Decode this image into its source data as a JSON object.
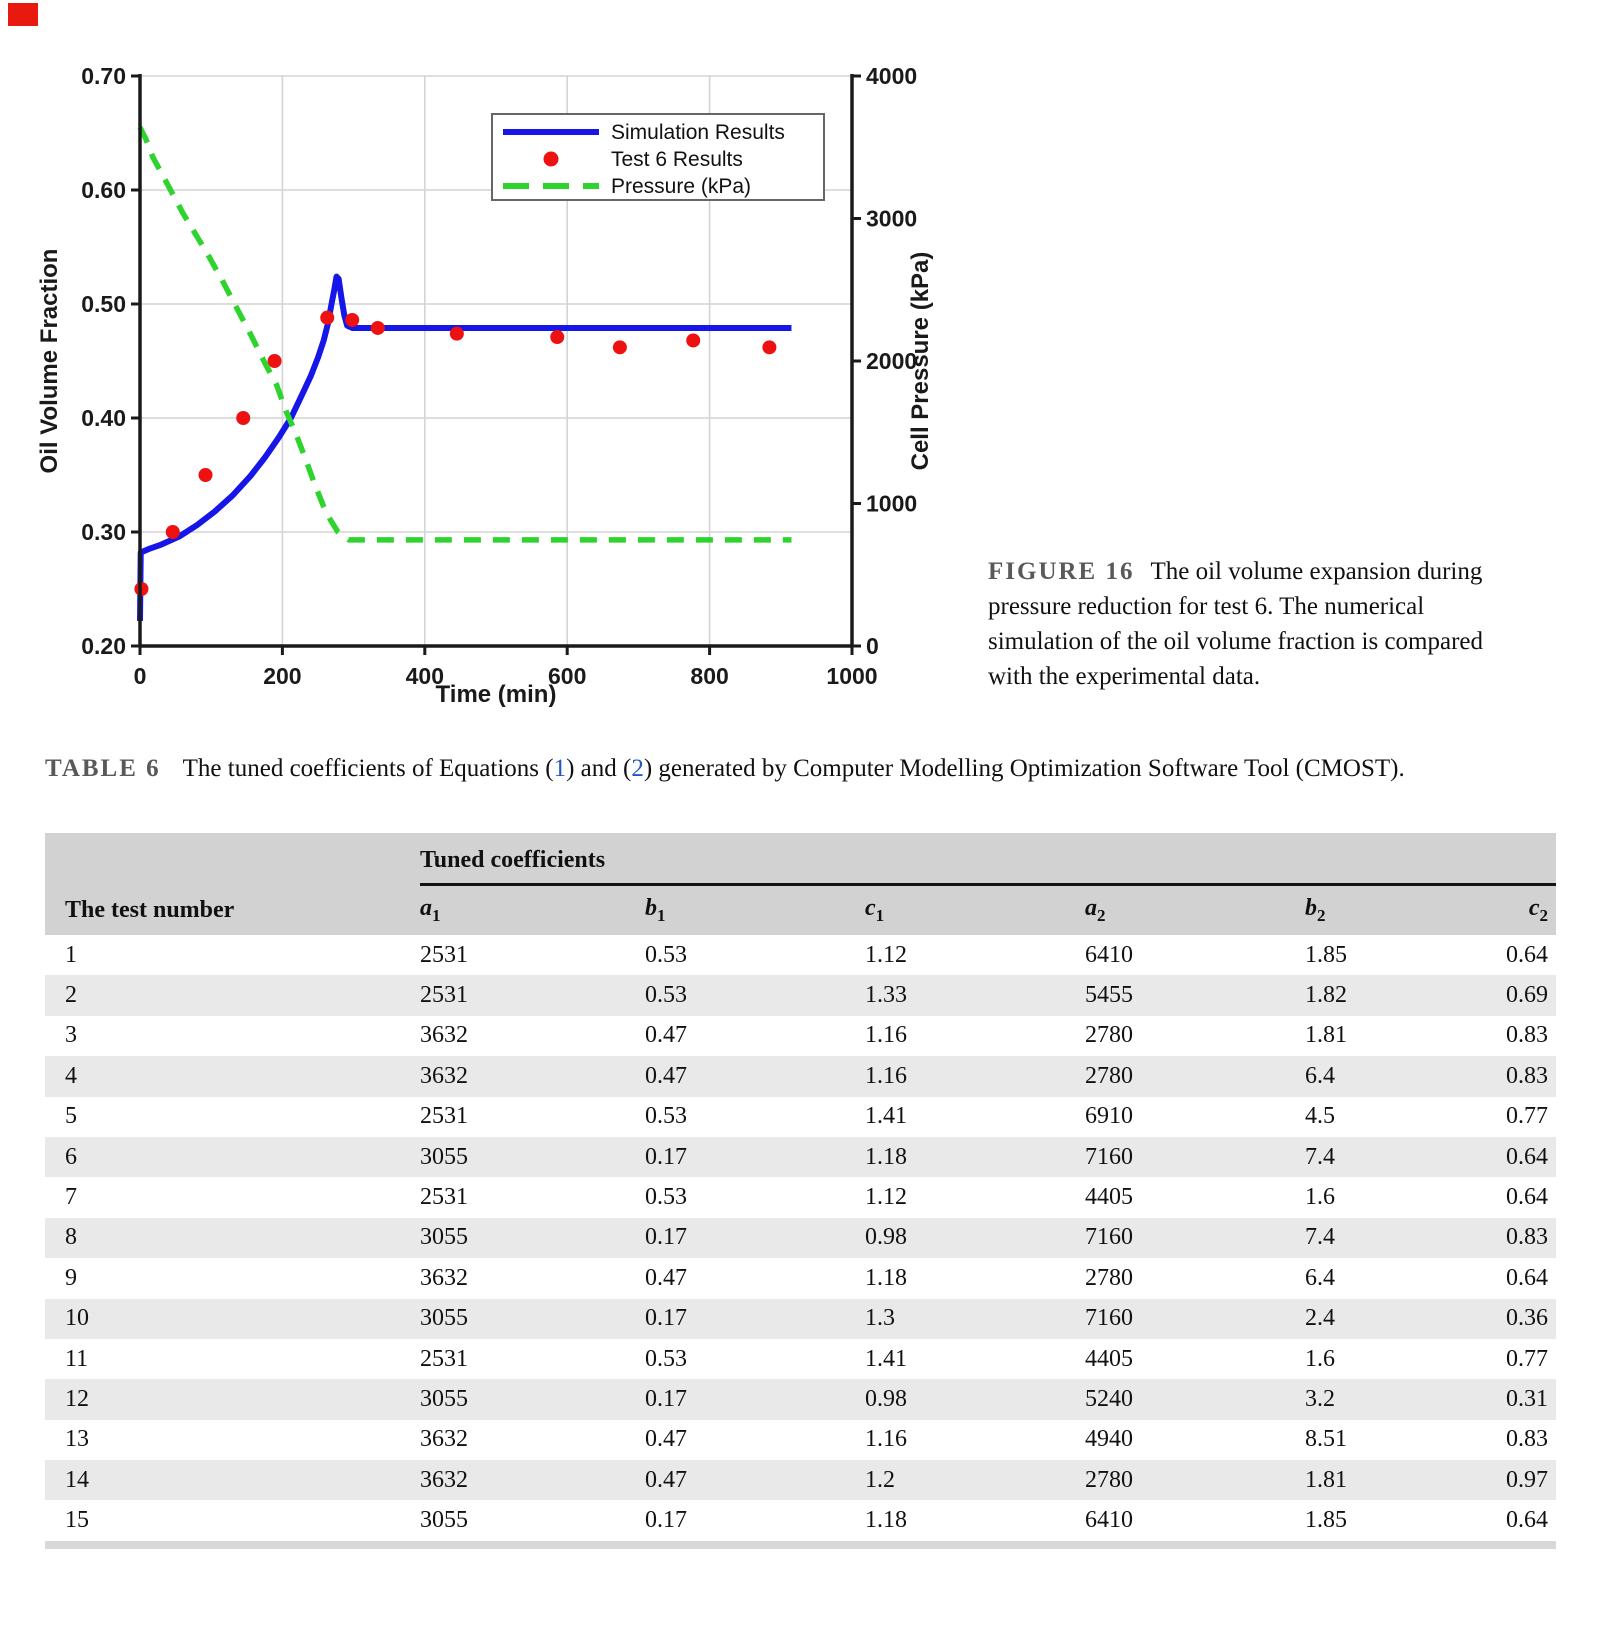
{
  "page": {
    "corner_marker_color": "#e8190f"
  },
  "figure": {
    "caption_label": "FIGURE 16",
    "caption_text": "The oil volume expansion during pressure reduction for test 6. The numerical simulation of the oil volume fraction is compared with the experimental data."
  },
  "chart_data": {
    "type": "line",
    "title": "",
    "xlabel": "Time (min)",
    "ylabel_left": "Oil Volume Fraction",
    "ylabel_right": "Cell Pressure (kPa)",
    "xlim": [
      0,
      1000
    ],
    "ylim_left": [
      0.2,
      0.7
    ],
    "ylim_right": [
      0,
      4000
    ],
    "x_ticks": [
      "0",
      "200",
      "400",
      "600",
      "800",
      "1000"
    ],
    "y_ticks_left": [
      "0.70",
      "0.60",
      "0.50",
      "0.40",
      "0.30",
      "0.20"
    ],
    "y_ticks_right": [
      "4000",
      "3000",
      "2000",
      "1000",
      "0"
    ],
    "grid": true,
    "legend_position": "top-center-inside",
    "legend": [
      {
        "label": "Simulation Results",
        "style": "line",
        "color": "#1616e8"
      },
      {
        "label": "Test 6 Results",
        "style": "dot",
        "color": "#ee1111"
      },
      {
        "label": "Pressure (kPa)",
        "style": "dash",
        "color": "#2ed32e"
      }
    ],
    "series": [
      {
        "name": "Simulation Results",
        "axis": "left",
        "style": "line",
        "color": "#1616e8",
        "points": [
          [
            0,
            0.222
          ],
          [
            1,
            0.282
          ],
          [
            12,
            0.285
          ],
          [
            30,
            0.289
          ],
          [
            55,
            0.296
          ],
          [
            80,
            0.306
          ],
          [
            105,
            0.318
          ],
          [
            130,
            0.332
          ],
          [
            155,
            0.349
          ],
          [
            175,
            0.365
          ],
          [
            195,
            0.383
          ],
          [
            212,
            0.4
          ],
          [
            228,
            0.421
          ],
          [
            240,
            0.437
          ],
          [
            250,
            0.453
          ],
          [
            258,
            0.468
          ],
          [
            264,
            0.483
          ],
          [
            269,
            0.5
          ],
          [
            273,
            0.513
          ],
          [
            276,
            0.524
          ],
          [
            279,
            0.522
          ],
          [
            283,
            0.505
          ],
          [
            287,
            0.49
          ],
          [
            291,
            0.481
          ],
          [
            298,
            0.479
          ],
          [
            915,
            0.479
          ]
        ]
      },
      {
        "name": "Test 6 Results",
        "axis": "left",
        "style": "dot",
        "color": "#ee1111",
        "points": [
          [
            2,
            0.25
          ],
          [
            46,
            0.3
          ],
          [
            92,
            0.35
          ],
          [
            145,
            0.4
          ],
          [
            189,
            0.45
          ],
          [
            263,
            0.488
          ],
          [
            298,
            0.486
          ],
          [
            334,
            0.479
          ],
          [
            445,
            0.474
          ],
          [
            586,
            0.471
          ],
          [
            674,
            0.462
          ],
          [
            777,
            0.468
          ],
          [
            884,
            0.462
          ]
        ]
      },
      {
        "name": "Pressure (kPa)",
        "axis": "right",
        "style": "dash",
        "color": "#2ed32e",
        "points": [
          [
            0,
            3640
          ],
          [
            8,
            3560
          ],
          [
            18,
            3430
          ],
          [
            30,
            3320
          ],
          [
            45,
            3180
          ],
          [
            60,
            3040
          ],
          [
            78,
            2890
          ],
          [
            95,
            2750
          ],
          [
            115,
            2570
          ],
          [
            135,
            2380
          ],
          [
            155,
            2190
          ],
          [
            175,
            1990
          ],
          [
            192,
            1830
          ],
          [
            205,
            1650
          ],
          [
            218,
            1500
          ],
          [
            232,
            1320
          ],
          [
            245,
            1140
          ],
          [
            257,
            990
          ],
          [
            268,
            880
          ],
          [
            278,
            800
          ],
          [
            293,
            745
          ],
          [
            915,
            745
          ]
        ]
      }
    ]
  },
  "table": {
    "caption_label": "TABLE 6",
    "caption_segments": [
      {
        "text": "The tuned coefficients of Equations (",
        "link": false
      },
      {
        "text": "1",
        "link": true
      },
      {
        "text": ") and (",
        "link": false
      },
      {
        "text": "2",
        "link": true
      },
      {
        "text": ") generated by Computer Modelling Optimization Software Tool (CMOST).",
        "link": false
      }
    ],
    "group_header": "Tuned coefficients",
    "col1_header": "The test number",
    "coeff_headers": [
      {
        "base": "a",
        "sub": "1"
      },
      {
        "base": "b",
        "sub": "1"
      },
      {
        "base": "c",
        "sub": "1"
      },
      {
        "base": "a",
        "sub": "2"
      },
      {
        "base": "b",
        "sub": "2"
      },
      {
        "base": "c",
        "sub": "2"
      }
    ],
    "rows": [
      [
        "1",
        "2531",
        "0.53",
        "1.12",
        "6410",
        "1.85",
        "0.64"
      ],
      [
        "2",
        "2531",
        "0.53",
        "1.33",
        "5455",
        "1.82",
        "0.69"
      ],
      [
        "3",
        "3632",
        "0.47",
        "1.16",
        "2780",
        "1.81",
        "0.83"
      ],
      [
        "4",
        "3632",
        "0.47",
        "1.16",
        "2780",
        "6.4",
        "0.83"
      ],
      [
        "5",
        "2531",
        "0.53",
        "1.41",
        "6910",
        "4.5",
        "0.77"
      ],
      [
        "6",
        "3055",
        "0.17",
        "1.18",
        "7160",
        "7.4",
        "0.64"
      ],
      [
        "7",
        "2531",
        "0.53",
        "1.12",
        "4405",
        "1.6",
        "0.64"
      ],
      [
        "8",
        "3055",
        "0.17",
        "0.98",
        "7160",
        "7.4",
        "0.83"
      ],
      [
        "9",
        "3632",
        "0.47",
        "1.18",
        "2780",
        "6.4",
        "0.64"
      ],
      [
        "10",
        "3055",
        "0.17",
        "1.3",
        "7160",
        "2.4",
        "0.36"
      ],
      [
        "11",
        "2531",
        "0.53",
        "1.41",
        "4405",
        "1.6",
        "0.77"
      ],
      [
        "12",
        "3055",
        "0.17",
        "0.98",
        "5240",
        "3.2",
        "0.31"
      ],
      [
        "13",
        "3632",
        "0.47",
        "1.16",
        "4940",
        "8.51",
        "0.83"
      ],
      [
        "14",
        "3632",
        "0.47",
        "1.2",
        "2780",
        "1.81",
        "0.97"
      ],
      [
        "15",
        "3055",
        "0.17",
        "1.18",
        "6410",
        "1.85",
        "0.64"
      ]
    ]
  }
}
